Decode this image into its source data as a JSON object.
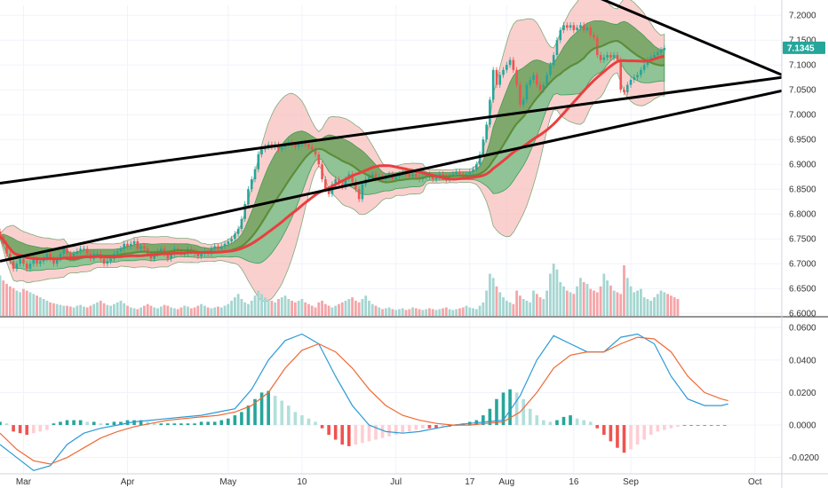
{
  "chart_data": [
    {
      "type": "candlestick",
      "title": "",
      "price_axis_ticks": [
        "7.2000",
        "7.1500",
        "7.1000",
        "7.0500",
        "7.0000",
        "6.9500",
        "6.9000",
        "6.8500",
        "6.8000",
        "6.7500",
        "6.7000",
        "6.6500",
        "6.6000"
      ],
      "price_axis_values": [
        7.2,
        7.15,
        7.1,
        7.05,
        7.0,
        6.95,
        6.9,
        6.85,
        6.8,
        6.75,
        6.7,
        6.65,
        6.6
      ],
      "ylim": [
        6.595,
        7.22
      ],
      "last_price_label": "7.1345",
      "last_price": 7.1345,
      "x_ticks": [
        "Mar",
        "Apr",
        "May",
        "10",
        "Jul",
        "17",
        "Aug",
        "16",
        "Sep",
        "Oct"
      ],
      "x_tick_days": [
        7,
        38,
        68,
        90,
        118,
        140,
        151,
        171,
        188,
        225
      ],
      "days": 217,
      "xlim": [
        0,
        233
      ],
      "closes": [
        6.755,
        6.74,
        6.72,
        6.705,
        6.69,
        6.7,
        6.71,
        6.7,
        6.69,
        6.7,
        6.71,
        6.7,
        6.705,
        6.71,
        6.72,
        6.71,
        6.7,
        6.71,
        6.72,
        6.73,
        6.72,
        6.71,
        6.72,
        6.725,
        6.73,
        6.73,
        6.72,
        6.71,
        6.72,
        6.72,
        6.71,
        6.7,
        6.705,
        6.71,
        6.72,
        6.725,
        6.73,
        6.74,
        6.735,
        6.74,
        6.745,
        6.73,
        6.735,
        6.73,
        6.72,
        6.71,
        6.72,
        6.725,
        6.73,
        6.72,
        6.71,
        6.72,
        6.73,
        6.725,
        6.72,
        6.72,
        6.73,
        6.725,
        6.72,
        6.715,
        6.72,
        6.725,
        6.72,
        6.73,
        6.735,
        6.73,
        6.735,
        6.74,
        6.745,
        6.75,
        6.76,
        6.77,
        6.79,
        6.82,
        6.85,
        6.87,
        6.89,
        6.92,
        6.93,
        6.935,
        6.94,
        6.935,
        6.94,
        6.93,
        6.935,
        6.94,
        6.945,
        6.94,
        6.935,
        6.94,
        6.945,
        6.94,
        6.935,
        6.93,
        6.92,
        6.9,
        6.87,
        6.85,
        6.84,
        6.86,
        6.87,
        6.86,
        6.855,
        6.87,
        6.88,
        6.865,
        6.85,
        6.83,
        6.86,
        6.87,
        6.875,
        6.88,
        6.87,
        6.875,
        6.87,
        6.875,
        6.88,
        6.87,
        6.875,
        6.88,
        6.885,
        6.88,
        6.875,
        6.88,
        6.875,
        6.87,
        6.875,
        6.88,
        6.875,
        6.87,
        6.875,
        6.88,
        6.875,
        6.87,
        6.875,
        6.88,
        6.885,
        6.88,
        6.875,
        6.88,
        6.885,
        6.89,
        6.9,
        6.92,
        6.95,
        6.98,
        7.03,
        7.09,
        7.06,
        7.08,
        7.09,
        7.1,
        7.11,
        7.09,
        7.06,
        7.02,
        7.03,
        7.06,
        7.07,
        7.08,
        7.06,
        7.05,
        7.06,
        7.08,
        7.1,
        7.12,
        7.15,
        7.17,
        7.18,
        7.175,
        7.18,
        7.17,
        7.175,
        7.18,
        7.17,
        7.175,
        7.16,
        7.155,
        7.12,
        7.11,
        7.115,
        7.12,
        7.115,
        7.12,
        7.11,
        7.05,
        7.045,
        7.06,
        7.07,
        7.075,
        7.08,
        7.09,
        7.1,
        7.11,
        7.115,
        7.12,
        7.125,
        7.13,
        7.1345
      ],
      "volume_max": 1.0,
      "volume_bars": [
        0.48,
        0.42,
        0.38,
        0.35,
        0.33,
        0.3,
        0.28,
        0.32,
        0.3,
        0.28,
        0.26,
        0.24,
        0.22,
        0.2,
        0.18,
        0.16,
        0.15,
        0.14,
        0.13,
        0.12,
        0.12,
        0.11,
        0.1,
        0.12,
        0.13,
        0.11,
        0.1,
        0.12,
        0.14,
        0.16,
        0.18,
        0.15,
        0.13,
        0.12,
        0.14,
        0.16,
        0.18,
        0.15,
        0.12,
        0.1,
        0.09,
        0.08,
        0.1,
        0.12,
        0.14,
        0.12,
        0.1,
        0.09,
        0.11,
        0.13,
        0.12,
        0.1,
        0.09,
        0.08,
        0.1,
        0.12,
        0.11,
        0.09,
        0.1,
        0.12,
        0.14,
        0.12,
        0.1,
        0.09,
        0.1,
        0.11,
        0.1,
        0.12,
        0.14,
        0.18,
        0.22,
        0.26,
        0.2,
        0.16,
        0.14,
        0.18,
        0.24,
        0.3,
        0.26,
        0.22,
        0.2,
        0.18,
        0.16,
        0.2,
        0.22,
        0.24,
        0.2,
        0.18,
        0.16,
        0.18,
        0.2,
        0.16,
        0.14,
        0.12,
        0.1,
        0.16,
        0.18,
        0.14,
        0.12,
        0.1,
        0.12,
        0.14,
        0.16,
        0.18,
        0.2,
        0.22,
        0.18,
        0.16,
        0.2,
        0.24,
        0.18,
        0.14,
        0.12,
        0.1,
        0.08,
        0.09,
        0.1,
        0.08,
        0.07,
        0.08,
        0.09,
        0.07,
        0.08,
        0.1,
        0.09,
        0.08,
        0.07,
        0.08,
        0.09,
        0.08,
        0.07,
        0.08,
        0.09,
        0.1,
        0.08,
        0.07,
        0.08,
        0.09,
        0.1,
        0.12,
        0.1,
        0.09,
        0.08,
        0.12,
        0.16,
        0.3,
        0.5,
        0.45,
        0.35,
        0.28,
        0.22,
        0.18,
        0.16,
        0.14,
        0.3,
        0.24,
        0.2,
        0.18,
        0.16,
        0.3,
        0.26,
        0.22,
        0.2,
        0.3,
        0.5,
        0.62,
        0.55,
        0.4,
        0.35,
        0.3,
        0.28,
        0.26,
        0.35,
        0.45,
        0.4,
        0.38,
        0.32,
        0.3,
        0.28,
        0.35,
        0.5,
        0.42,
        0.36,
        0.3,
        0.28,
        0.26,
        0.6,
        0.45,
        0.35,
        0.28,
        0.3,
        0.32,
        0.22,
        0.2,
        0.18,
        0.22,
        0.26,
        0.3,
        0.28,
        0.26,
        0.24,
        0.22,
        0.2
      ],
      "macd_axis_ticks": [
        "0.0600",
        "0.0400",
        "0.0200",
        "0.0000",
        "-0.0200"
      ],
      "macd_axis_values": [
        0.06,
        0.04,
        0.02,
        0.0,
        -0.02
      ],
      "macd_ylim": [
        -0.03,
        0.065
      ],
      "macd_days": [
        0,
        5,
        10,
        15,
        20,
        25,
        30,
        35,
        40,
        45,
        50,
        55,
        60,
        65,
        70,
        75,
        80,
        85,
        90,
        95,
        100,
        105,
        110,
        115,
        120,
        125,
        130,
        135,
        140,
        145,
        150,
        155,
        160,
        165,
        170,
        175,
        180,
        185,
        190,
        195,
        200,
        205,
        210,
        215,
        217
      ],
      "macd": [
        -0.012,
        -0.02,
        -0.028,
        -0.025,
        -0.012,
        -0.005,
        -0.002,
        0.0,
        0.002,
        0.003,
        0.004,
        0.005,
        0.006,
        0.008,
        0.01,
        0.022,
        0.04,
        0.052,
        0.056,
        0.05,
        0.03,
        0.012,
        0.0,
        -0.004,
        -0.005,
        -0.004,
        -0.002,
        0.0,
        0.001,
        0.002,
        0.003,
        0.018,
        0.04,
        0.055,
        0.05,
        0.045,
        0.045,
        0.054,
        0.056,
        0.05,
        0.03,
        0.016,
        0.012,
        0.012,
        0.013
      ],
      "signal": [
        -0.005,
        -0.015,
        -0.022,
        -0.024,
        -0.02,
        -0.014,
        -0.008,
        -0.004,
        -0.001,
        0.001,
        0.003,
        0.004,
        0.005,
        0.006,
        0.008,
        0.012,
        0.02,
        0.035,
        0.046,
        0.05,
        0.045,
        0.035,
        0.022,
        0.012,
        0.006,
        0.003,
        0.001,
        0.0,
        0.0,
        0.001,
        0.002,
        0.008,
        0.02,
        0.035,
        0.043,
        0.045,
        0.045,
        0.05,
        0.054,
        0.053,
        0.045,
        0.03,
        0.02,
        0.016,
        0.015
      ],
      "macd_hist_days_step": 2,
      "macd_hist": [
        0.002,
        0.001,
        -0.004,
        -0.005,
        -0.006,
        -0.005,
        -0.004,
        -0.003,
        0.001,
        0.002,
        0.003,
        0.003,
        0.003,
        0.002,
        0.002,
        0.001,
        0.001,
        0.002,
        0.002,
        0.003,
        0.003,
        0.003,
        0.002,
        0.001,
        0.001,
        0.001,
        0.001,
        0.001,
        0.001,
        0.001,
        0.002,
        0.002,
        0.002,
        0.003,
        0.004,
        0.006,
        0.008,
        0.012,
        0.016,
        0.02,
        0.021,
        0.018,
        0.015,
        0.012,
        0.008,
        0.006,
        0.004,
        0.002,
        -0.002,
        -0.006,
        -0.009,
        -0.012,
        -0.013,
        -0.012,
        -0.011,
        -0.01,
        -0.009,
        -0.008,
        -0.007,
        -0.006,
        -0.005,
        -0.004,
        -0.003,
        -0.002,
        -0.002,
        -0.002,
        -0.001,
        -0.001,
        0.0,
        0.001,
        0.002,
        0.003,
        0.006,
        0.01,
        0.016,
        0.02,
        0.022,
        0.02,
        0.016,
        0.01,
        0.006,
        0.003,
        0.002,
        0.003,
        0.005,
        0.006,
        0.004,
        0.003,
        0.002,
        -0.002,
        -0.006,
        -0.01,
        -0.014,
        -0.017,
        -0.015,
        -0.012,
        -0.009,
        -0.006,
        -0.004,
        -0.003,
        -0.002,
        -0.001,
        0.0,
        0.0,
        0.0,
        0.0,
        0.0,
        0.0,
        0.0
      ],
      "trendlines": [
        {
          "name": "upper-resistance",
          "from": {
            "day": 0,
            "price": 6.862
          },
          "to": {
            "day": 233,
            "price": 7.075
          }
        },
        {
          "name": "upper-falling",
          "from": {
            "day": 175,
            "price": 7.245
          },
          "to": {
            "day": 233,
            "price": 7.08
          }
        }
      ],
      "grid": true,
      "legend": "none"
    }
  ],
  "colors": {
    "up": "#26a69a",
    "down": "#ef5350",
    "up_light": "#a5d6d1",
    "down_light": "#f5a5a8",
    "bb_fill_low": "#f7b7b3",
    "bb_fill_high": "#6cbf83",
    "kc_fill": "#6a8a3a",
    "ema_fast": "#ea3f3f",
    "ema_mid": "#5d8d3a",
    "macd_line": "#2b9bd6",
    "signal_line": "#ef6a35",
    "trendline": "#000000",
    "badge": "#26a69a"
  }
}
